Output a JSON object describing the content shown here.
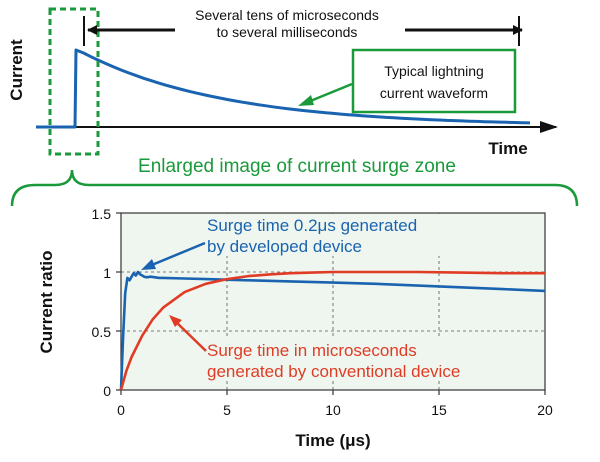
{
  "colors": {
    "blue": "#1a63b0",
    "red": "#e03c25",
    "green": "#1a9a3a",
    "plot_bg": "#eef6ef",
    "grid": "#555555"
  },
  "top_diagram": {
    "ylabel": "Current",
    "xlabel": "Time",
    "duration_line1": "Several tens of microseconds",
    "duration_line2": "to several milliseconds",
    "waveform_line1": "Typical lightning",
    "waveform_line2": "current waveform"
  },
  "enlarged_label": "Enlarged image of current surge zone",
  "chart_data": {
    "type": "line",
    "xlabel": "Time (μs)",
    "ylabel": "Current ratio",
    "xlim": [
      0,
      20
    ],
    "ylim": [
      0,
      1.5
    ],
    "xticks": [
      "0",
      "5",
      "10",
      "15",
      "20"
    ],
    "yticks": [
      "0",
      "0.5",
      "1",
      "1.5"
    ],
    "grid": true,
    "series": [
      {
        "name": "Surge time 0.2μs generated by developed device",
        "label_line1": "Surge time 0.2μs generated",
        "label_line2": "by developed device",
        "color": "#1a63b0",
        "x": [
          0,
          0.1,
          0.2,
          0.3,
          0.4,
          0.5,
          0.6,
          0.7,
          0.8,
          0.9,
          1.0,
          1.1,
          1.2,
          1.4,
          1.6,
          1.8,
          2.0,
          3,
          4,
          5,
          6,
          8,
          10,
          12,
          14,
          16,
          18,
          20
        ],
        "y": [
          0,
          0.45,
          0.82,
          0.95,
          0.93,
          0.96,
          0.99,
          0.97,
          1.0,
          0.98,
          0.97,
          0.96,
          0.955,
          0.96,
          0.955,
          0.95,
          0.95,
          0.945,
          0.94,
          0.935,
          0.93,
          0.92,
          0.91,
          0.9,
          0.885,
          0.87,
          0.855,
          0.84
        ]
      },
      {
        "name": "Surge time in microseconds generated by conventional device",
        "label_line1": "Surge time in microseconds",
        "label_line2": "generated by conventional device",
        "color": "#e03c25",
        "x": [
          0,
          0.25,
          0.5,
          1,
          1.5,
          2,
          3,
          4,
          5,
          6,
          7,
          8,
          9,
          10,
          12,
          14,
          16,
          18,
          20
        ],
        "y": [
          0,
          0.16,
          0.28,
          0.46,
          0.6,
          0.7,
          0.83,
          0.9,
          0.94,
          0.965,
          0.98,
          0.99,
          0.995,
          1.0,
          1.0,
          1.0,
          0.995,
          0.99,
          0.99
        ]
      }
    ]
  }
}
